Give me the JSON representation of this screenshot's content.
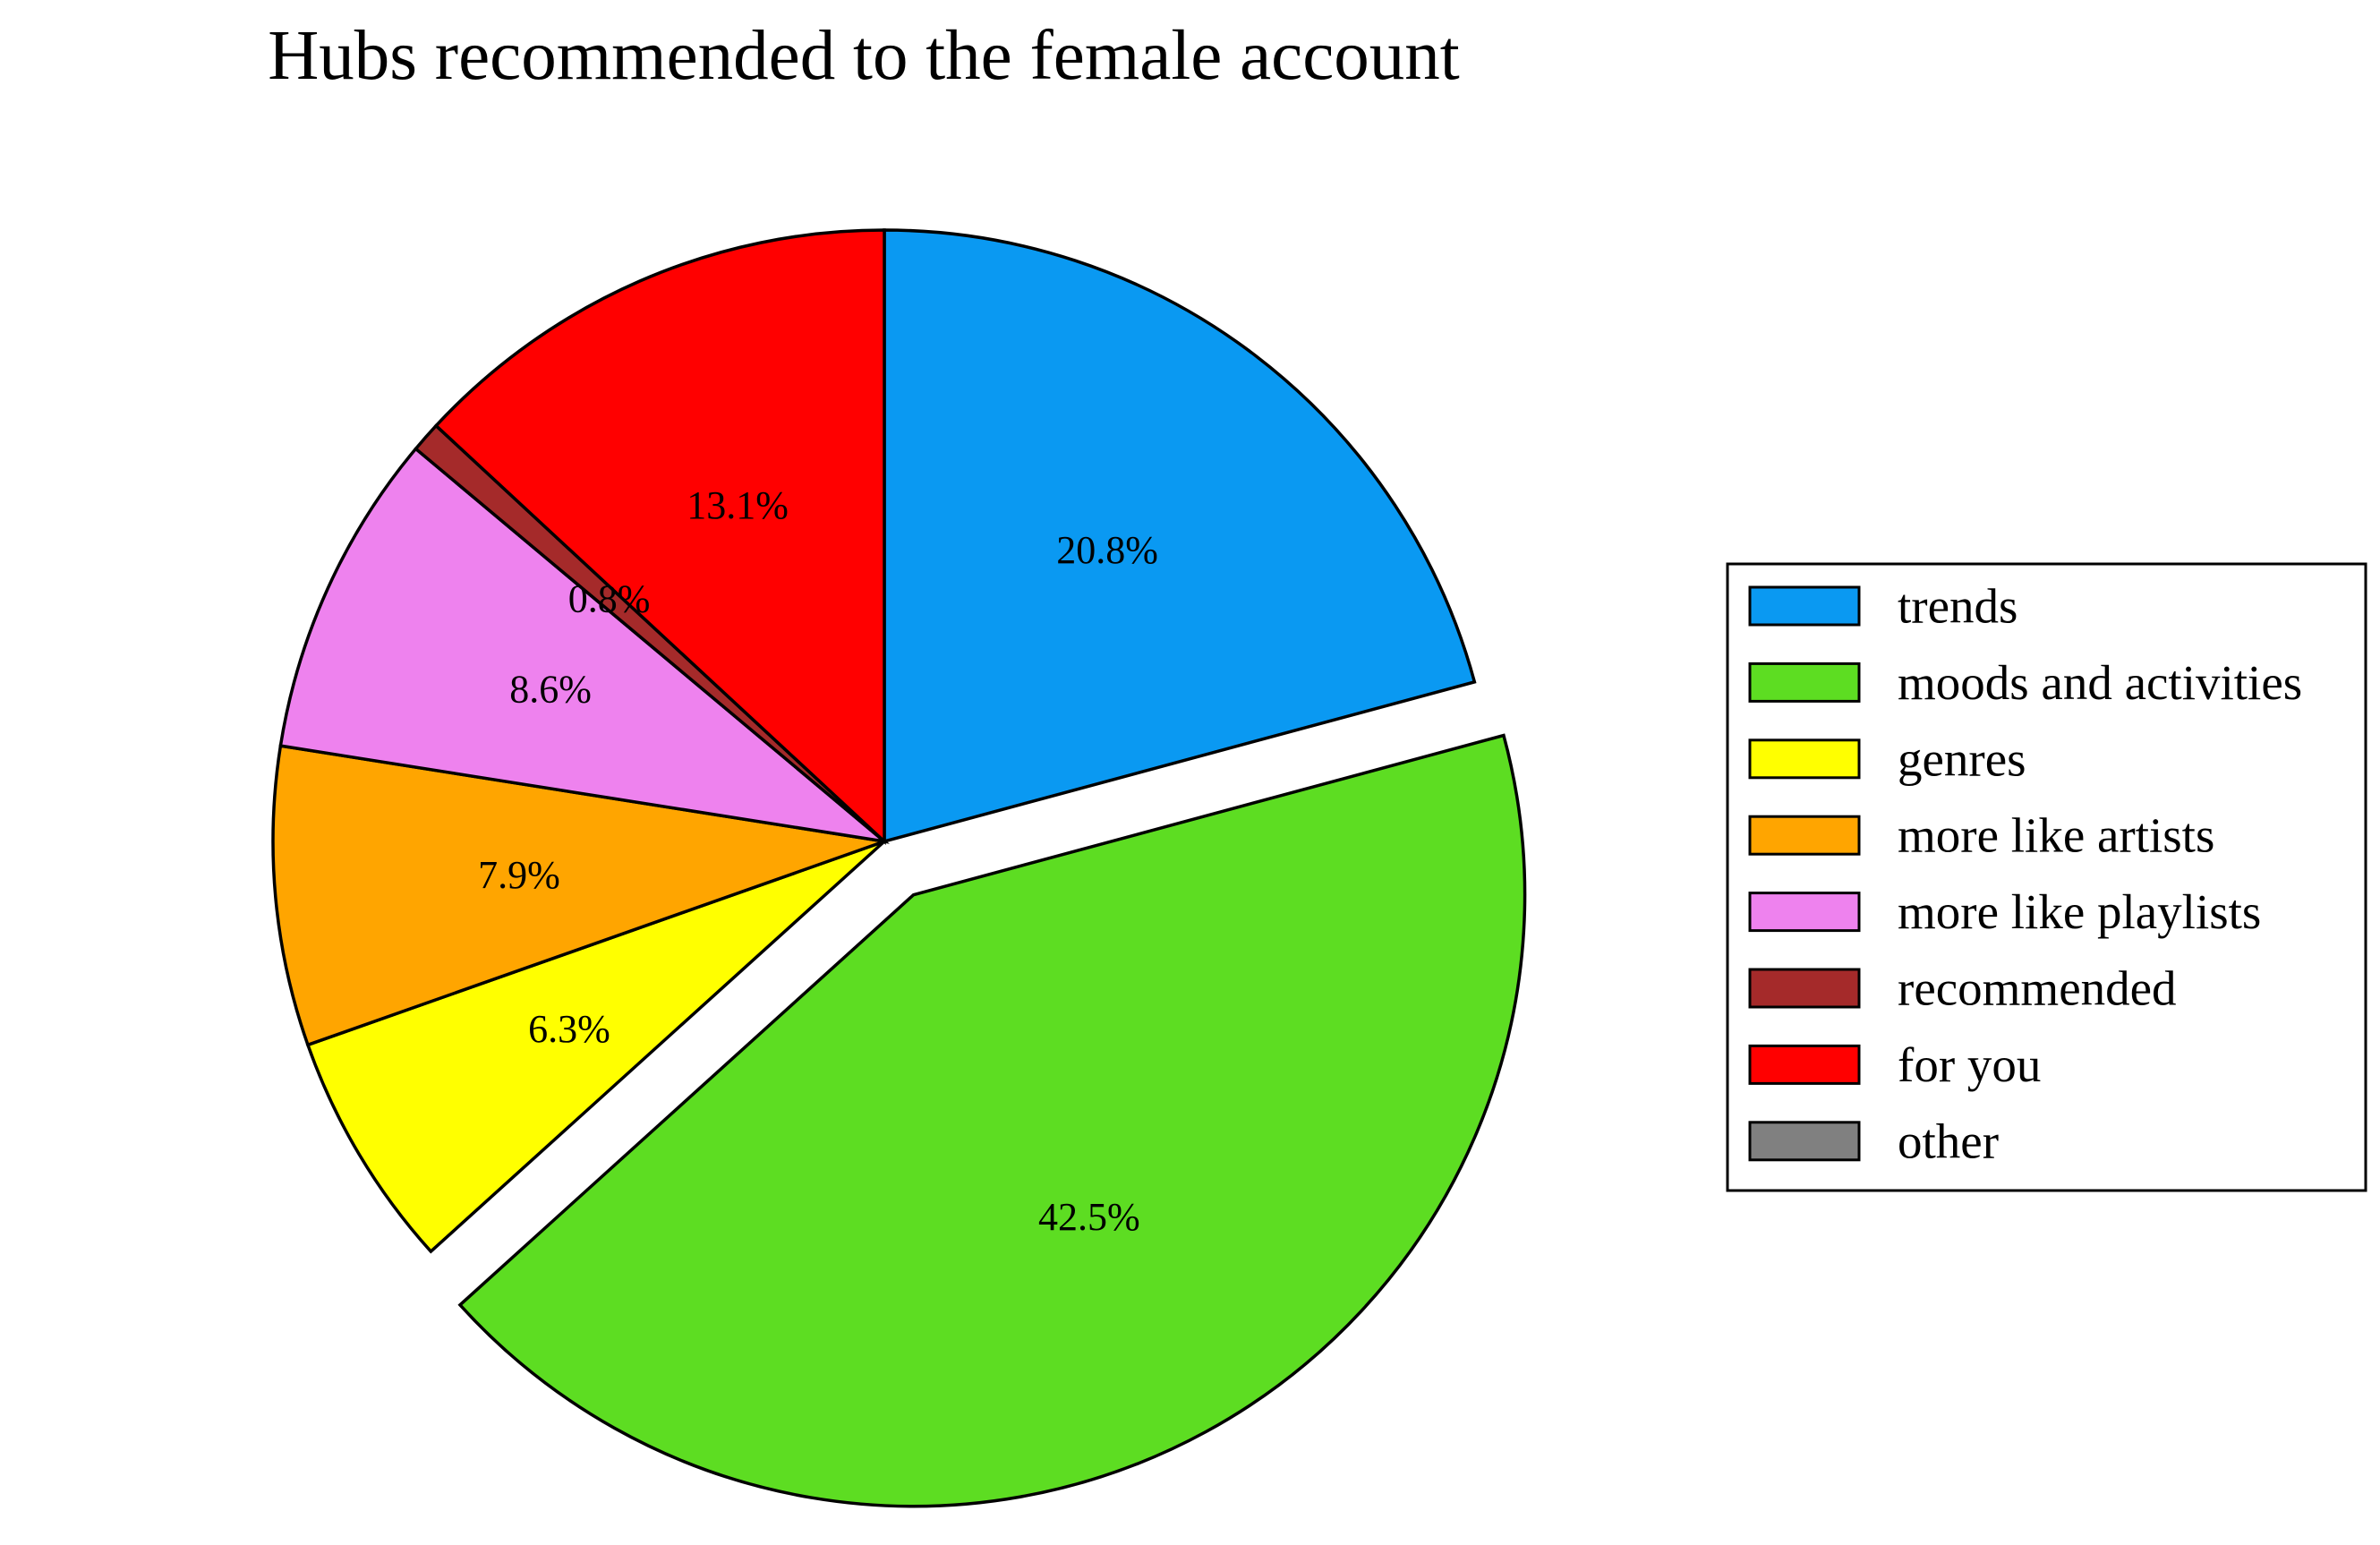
{
  "chart_data": {
    "type": "pie",
    "title": "Hubs recommended to the female account",
    "start_angle_deg": 90,
    "direction": "clockwise",
    "exploded_category": "moods and activities",
    "slices": [
      {
        "label": "trends",
        "value": 20.8,
        "pct_text": "20.8%",
        "color": "#0a99f2"
      },
      {
        "label": "moods and activities",
        "value": 42.5,
        "pct_text": "42.5%",
        "color": "#5ddd22"
      },
      {
        "label": "genres",
        "value": 6.3,
        "pct_text": "6.3%",
        "color": "#ffff00"
      },
      {
        "label": "more like artists",
        "value": 7.9,
        "pct_text": "7.9%",
        "color": "#ffa500"
      },
      {
        "label": "more like playlists",
        "value": 8.6,
        "pct_text": "8.6%",
        "color": "#ee82ee"
      },
      {
        "label": "recommended",
        "value": 0.8,
        "pct_text": "0.8%",
        "color": "#a52a2a"
      },
      {
        "label": "for you",
        "value": 13.1,
        "pct_text": "13.1%",
        "color": "#ff0000"
      },
      {
        "label": "other",
        "value": 0,
        "pct_text": "",
        "color": "#808080"
      }
    ],
    "legend_position": "center-right"
  }
}
